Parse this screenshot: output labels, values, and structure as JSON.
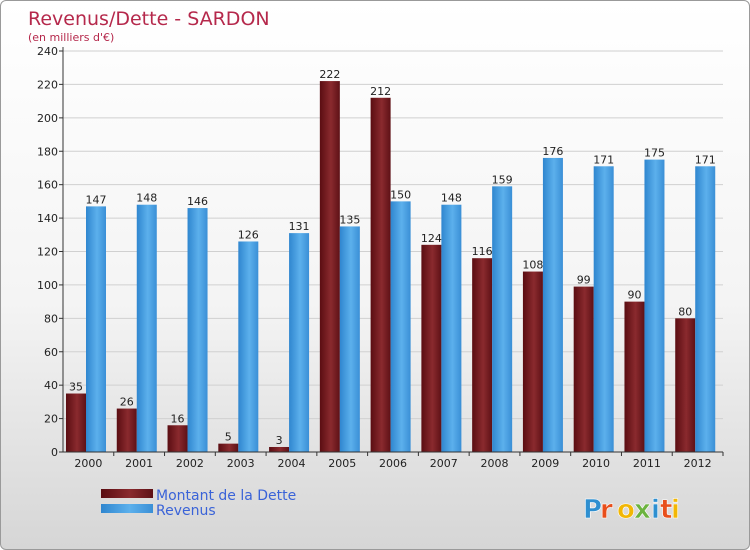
{
  "chart_data": {
    "type": "bar",
    "title": "Revenus/Dette - SARDON",
    "subtitle": "(en milliers d'€)",
    "xlabel": "",
    "ylabel": "",
    "ylim": [
      0,
      240
    ],
    "yticks": [
      0,
      20,
      40,
      60,
      80,
      100,
      120,
      140,
      160,
      180,
      200,
      220,
      240
    ],
    "grid": true,
    "legend": "bottom-left",
    "categories": [
      "2000",
      "2001",
      "2002",
      "2003",
      "2004",
      "2005",
      "2006",
      "2007",
      "2008",
      "2009",
      "2010",
      "2011",
      "2012"
    ],
    "series": [
      {
        "name": "Montant de la Dette",
        "color": "#7a1a1f",
        "values": [
          35,
          26,
          16,
          5,
          3,
          222,
          212,
          124,
          116,
          108,
          99,
          90,
          80
        ]
      },
      {
        "name": "Revenus",
        "color": "#4a9fe0",
        "values": [
          147,
          148,
          146,
          126,
          131,
          135,
          150,
          148,
          159,
          176,
          171,
          175,
          171
        ]
      }
    ]
  },
  "logo": {
    "text": "Proxiti",
    "colors": [
      "#2e8fd0",
      "#e84e1b",
      "#f2b705",
      "#6cb33f"
    ]
  }
}
